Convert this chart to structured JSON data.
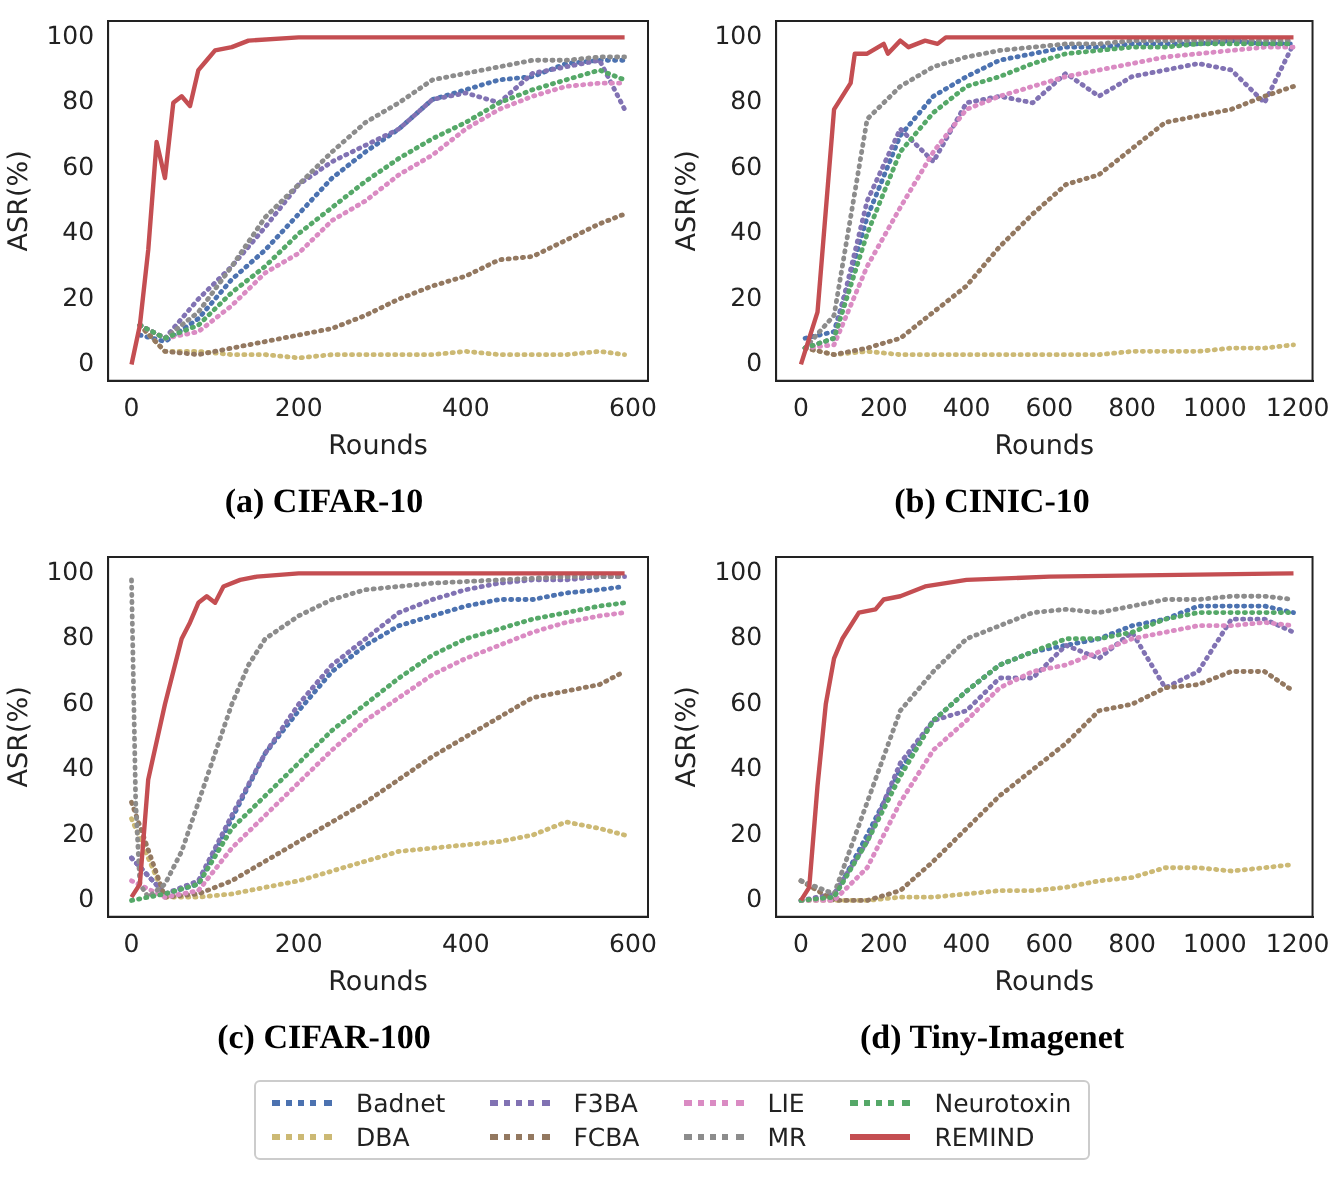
{
  "chart_data": [
    {
      "type": "line",
      "title": "(a) CIFAR-10",
      "xlabel": "Rounds",
      "ylabel": "ASR(%)",
      "xlim": [
        -28,
        618
      ],
      "ylim": [
        -5,
        105
      ],
      "xticks": [
        0,
        200,
        400,
        600
      ],
      "yticks": [
        0,
        20,
        40,
        60,
        80,
        100
      ],
      "grid": false,
      "legend": "bottom",
      "x": [
        10,
        40,
        80,
        120,
        160,
        200,
        240,
        280,
        320,
        360,
        400,
        440,
        480,
        520,
        560,
        590
      ],
      "series": [
        {
          "name": "Badnet",
          "color": "#4c72b0",
          "line_style": "dotted",
          "values": [
            9,
            7,
            14,
            26,
            35,
            46,
            57,
            65,
            72,
            81,
            84,
            87,
            88,
            92,
            93,
            93
          ]
        },
        {
          "name": "DBA",
          "color": "#ccb974",
          "line_style": "dotted",
          "values": [
            12,
            4,
            4,
            3,
            3,
            2,
            3,
            3,
            3,
            3,
            4,
            3,
            3,
            3,
            4,
            3
          ]
        },
        {
          "name": "F3BA",
          "color": "#8172b3",
          "line_style": "dotted",
          "values": [
            12,
            8,
            20,
            30,
            42,
            55,
            62,
            67,
            72,
            81,
            83,
            80,
            89,
            91,
            93,
            78
          ]
        },
        {
          "name": "FCBA",
          "color": "#937860",
          "line_style": "dotted",
          "values": [
            12,
            4,
            3,
            5,
            7,
            9,
            11,
            15,
            20,
            24,
            27,
            32,
            33,
            38,
            43,
            46
          ]
        },
        {
          "name": "LIE",
          "color": "#da8bc3",
          "line_style": "dotted",
          "values": [
            12,
            8,
            10,
            18,
            28,
            34,
            44,
            50,
            58,
            64,
            72,
            78,
            82,
            85,
            86,
            86
          ]
        },
        {
          "name": "MR",
          "color": "#8c8c8c",
          "line_style": "dotted",
          "values": [
            12,
            8,
            16,
            30,
            45,
            55,
            65,
            74,
            80,
            87,
            89,
            91,
            93,
            93,
            94,
            94
          ]
        },
        {
          "name": "Neurotoxin",
          "color": "#55a868",
          "line_style": "dotted",
          "values": [
            12,
            8,
            12,
            22,
            30,
            40,
            48,
            56,
            63,
            69,
            74,
            80,
            84,
            87,
            90,
            87
          ]
        },
        {
          "name": "REMIND",
          "color": "#c44e52",
          "line_style": "solid",
          "x": [
            0,
            10,
            20,
            30,
            40,
            50,
            60,
            70,
            80,
            90,
            100,
            120,
            140,
            200,
            300,
            590
          ],
          "values": [
            0,
            12,
            35,
            68,
            57,
            80,
            82,
            79,
            90,
            93,
            96,
            97,
            99,
            100,
            100,
            100
          ]
        }
      ]
    },
    {
      "type": "line",
      "title": "(b) CINIC-10",
      "xlabel": "Rounds",
      "ylabel": "ASR(%)",
      "xlim": [
        -60,
        1236
      ],
      "ylim": [
        -5,
        105
      ],
      "xticks": [
        0,
        200,
        400,
        600,
        800,
        1000,
        1200
      ],
      "yticks": [
        0,
        20,
        40,
        60,
        80,
        100
      ],
      "grid": false,
      "x": [
        10,
        80,
        160,
        240,
        320,
        400,
        480,
        560,
        640,
        720,
        800,
        880,
        960,
        1040,
        1120,
        1190
      ],
      "series": [
        {
          "name": "Badnet",
          "color": "#4c72b0",
          "line_style": "dotted",
          "values": [
            8,
            10,
            45,
            70,
            82,
            88,
            93,
            95,
            97,
            97,
            98,
            98,
            98,
            99,
            98,
            98
          ]
        },
        {
          "name": "DBA",
          "color": "#ccb974",
          "line_style": "dotted",
          "values": [
            5,
            3,
            4,
            3,
            3,
            3,
            3,
            3,
            3,
            3,
            4,
            4,
            4,
            5,
            5,
            6
          ]
        },
        {
          "name": "F3BA",
          "color": "#8172b3",
          "line_style": "dotted",
          "values": [
            5,
            8,
            50,
            72,
            62,
            80,
            82,
            80,
            89,
            82,
            88,
            90,
            92,
            90,
            80,
            98
          ]
        },
        {
          "name": "FCBA",
          "color": "#937860",
          "line_style": "dotted",
          "values": [
            5,
            3,
            5,
            8,
            16,
            24,
            36,
            46,
            55,
            58,
            66,
            74,
            76,
            78,
            82,
            85
          ]
        },
        {
          "name": "LIE",
          "color": "#da8bc3",
          "line_style": "dotted",
          "values": [
            5,
            6,
            30,
            48,
            65,
            78,
            82,
            85,
            88,
            90,
            92,
            94,
            95,
            96,
            97,
            97
          ]
        },
        {
          "name": "MR",
          "color": "#8c8c8c",
          "line_style": "dotted",
          "values": [
            5,
            15,
            75,
            85,
            91,
            94,
            96,
            97,
            98,
            98,
            99,
            99,
            99,
            99,
            99,
            99
          ]
        },
        {
          "name": "Neurotoxin",
          "color": "#55a868",
          "line_style": "dotted",
          "values": [
            5,
            8,
            40,
            65,
            77,
            85,
            88,
            92,
            95,
            96,
            97,
            97,
            98,
            98,
            98,
            98
          ]
        },
        {
          "name": "REMIND",
          "color": "#c44e52",
          "line_style": "solid",
          "x": [
            0,
            40,
            80,
            120,
            130,
            160,
            200,
            210,
            240,
            260,
            300,
            330,
            350,
            400,
            600,
            1190
          ],
          "values": [
            0,
            16,
            78,
            86,
            95,
            95,
            98,
            95,
            99,
            97,
            99,
            98,
            100,
            100,
            100,
            100
          ]
        }
      ]
    },
    {
      "type": "line",
      "title": "(c) CIFAR-100",
      "xlabel": "Rounds",
      "ylabel": "ASR(%)",
      "xlim": [
        -28,
        618
      ],
      "ylim": [
        -5,
        105
      ],
      "xticks": [
        0,
        200,
        400,
        600
      ],
      "yticks": [
        0,
        20,
        40,
        60,
        80,
        100
      ],
      "grid": false,
      "x": [
        0,
        40,
        80,
        120,
        160,
        200,
        240,
        280,
        320,
        360,
        400,
        440,
        480,
        520,
        560,
        590
      ],
      "series": [
        {
          "name": "Badnet",
          "color": "#4c72b0",
          "line_style": "dotted",
          "values": [
            13,
            2,
            5,
            25,
            45,
            58,
            70,
            78,
            84,
            87,
            90,
            92,
            92,
            94,
            95,
            96
          ]
        },
        {
          "name": "DBA",
          "color": "#ccb974",
          "line_style": "dotted",
          "values": [
            25,
            1,
            1,
            2,
            4,
            6,
            9,
            12,
            15,
            16,
            17,
            18,
            20,
            24,
            22,
            20
          ]
        },
        {
          "name": "F3BA",
          "color": "#8172b3",
          "line_style": "dotted",
          "values": [
            13,
            2,
            6,
            26,
            45,
            60,
            72,
            80,
            88,
            92,
            95,
            97,
            98,
            98,
            99,
            99
          ]
        },
        {
          "name": "FCBA",
          "color": "#937860",
          "line_style": "dotted",
          "values": [
            30,
            1,
            2,
            6,
            12,
            18,
            24,
            30,
            37,
            44,
            50,
            56,
            62,
            64,
            66,
            70
          ]
        },
        {
          "name": "LIE",
          "color": "#da8bc3",
          "line_style": "dotted",
          "values": [
            6,
            1,
            3,
            16,
            26,
            36,
            46,
            55,
            62,
            69,
            74,
            78,
            82,
            85,
            87,
            88
          ]
        },
        {
          "name": "MR",
          "color": "#8c8c8c",
          "line_style": "dotted",
          "x": [
            0,
            5,
            10,
            20,
            40,
            60,
            80,
            100,
            120,
            140,
            160,
            200,
            240,
            280,
            360,
            440,
            520,
            590
          ],
          "values": [
            98,
            30,
            5,
            1,
            5,
            15,
            30,
            45,
            60,
            72,
            80,
            87,
            92,
            95,
            97,
            98,
            99,
            99
          ]
        },
        {
          "name": "Neurotoxin",
          "color": "#55a868",
          "line_style": "dotted",
          "values": [
            0,
            2,
            5,
            22,
            32,
            42,
            52,
            60,
            68,
            75,
            80,
            83,
            86,
            88,
            90,
            91
          ]
        },
        {
          "name": "REMIND",
          "color": "#c44e52",
          "line_style": "solid",
          "x": [
            0,
            10,
            20,
            40,
            60,
            70,
            80,
            90,
            100,
            110,
            130,
            150,
            200,
            590
          ],
          "values": [
            1,
            5,
            37,
            60,
            80,
            85,
            91,
            93,
            91,
            96,
            98,
            99,
            100,
            100
          ]
        }
      ]
    },
    {
      "type": "line",
      "title": "(d) Tiny-Imagenet",
      "xlabel": "Rounds",
      "ylabel": "ASR(%)",
      "xlim": [
        -60,
        1236
      ],
      "ylim": [
        -5,
        105
      ],
      "xticks": [
        0,
        200,
        400,
        600,
        800,
        1000,
        1200
      ],
      "yticks": [
        0,
        20,
        40,
        60,
        80,
        100
      ],
      "grid": false,
      "x": [
        0,
        80,
        160,
        240,
        320,
        400,
        480,
        560,
        640,
        720,
        800,
        880,
        960,
        1040,
        1120,
        1190
      ],
      "series": [
        {
          "name": "Badnet",
          "color": "#4c72b0",
          "line_style": "dotted",
          "values": [
            0,
            1,
            20,
            40,
            55,
            64,
            72,
            76,
            78,
            80,
            84,
            86,
            90,
            90,
            90,
            88
          ]
        },
        {
          "name": "DBA",
          "color": "#ccb974",
          "line_style": "dotted",
          "values": [
            0,
            0,
            0,
            1,
            1,
            2,
            3,
            3,
            4,
            6,
            7,
            10,
            10,
            9,
            10,
            11
          ]
        },
        {
          "name": "F3BA",
          "color": "#8172b3",
          "line_style": "dotted",
          "values": [
            0,
            2,
            18,
            42,
            55,
            58,
            68,
            68,
            78,
            74,
            82,
            65,
            70,
            86,
            86,
            82
          ]
        },
        {
          "name": "FCBA",
          "color": "#937860",
          "line_style": "dotted",
          "values": [
            6,
            0,
            0,
            3,
            12,
            22,
            32,
            40,
            48,
            58,
            60,
            65,
            66,
            70,
            70,
            64
          ]
        },
        {
          "name": "LIE",
          "color": "#da8bc3",
          "line_style": "dotted",
          "values": [
            0,
            0,
            10,
            30,
            46,
            55,
            65,
            70,
            72,
            76,
            80,
            82,
            84,
            84,
            85,
            84
          ]
        },
        {
          "name": "MR",
          "color": "#8c8c8c",
          "line_style": "dotted",
          "values": [
            6,
            2,
            30,
            58,
            70,
            80,
            84,
            88,
            89,
            88,
            90,
            92,
            92,
            93,
            93,
            92
          ]
        },
        {
          "name": "Neurotoxin",
          "color": "#55a868",
          "line_style": "dotted",
          "values": [
            0,
            1,
            18,
            38,
            55,
            64,
            72,
            76,
            80,
            80,
            82,
            86,
            88,
            88,
            88,
            88
          ]
        },
        {
          "name": "REMIND",
          "color": "#c44e52",
          "line_style": "solid",
          "x": [
            0,
            20,
            40,
            60,
            80,
            100,
            140,
            180,
            200,
            240,
            300,
            400,
            600,
            1190
          ],
          "values": [
            0,
            4,
            35,
            60,
            74,
            80,
            88,
            89,
            92,
            93,
            96,
            98,
            99,
            100
          ]
        }
      ]
    }
  ]
}
